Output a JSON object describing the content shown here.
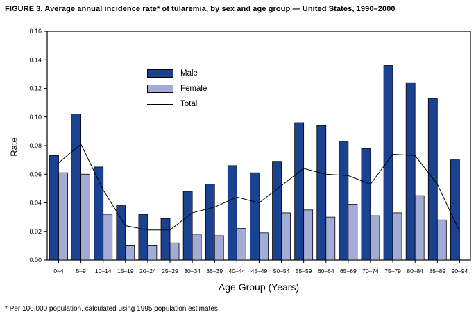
{
  "title": "FIGURE 3. Average annual incidence rate* of tularemia, by sex and age group — United States, 1990–2000",
  "footnote": "* Per 100,000 population, calculated using 1995 population estimates.",
  "chart_data": {
    "type": "bar",
    "title": "FIGURE 3. Average annual incidence rate* of tularemia, by sex and age group — United States, 1990–2000",
    "xlabel": "Age Group (Years)",
    "ylabel": "Rate",
    "ylim": [
      0,
      0.16
    ],
    "ytick_step": 0.02,
    "grid": false,
    "legend_position": "inside-upper-left",
    "categories": [
      "0–4",
      "5–9",
      "10–14",
      "15–19",
      "20–24",
      "25–29",
      "30–34",
      "35–39",
      "40–44",
      "45–49",
      "50–54",
      "55–59",
      "60–64",
      "65–69",
      "70–74",
      "75–79",
      "80–84",
      "85–89",
      "90–94"
    ],
    "series": [
      {
        "name": "Male",
        "style": "bar",
        "color": "#1a4291",
        "values": [
          0.073,
          0.102,
          0.065,
          0.038,
          0.032,
          0.029,
          0.048,
          0.053,
          0.066,
          0.061,
          0.069,
          0.096,
          0.094,
          0.083,
          0.078,
          0.136,
          0.124,
          0.113,
          0.07
        ]
      },
      {
        "name": "Female",
        "style": "bar",
        "color": "#a4abd4",
        "values": [
          0.061,
          0.06,
          0.032,
          0.01,
          0.01,
          0.012,
          0.018,
          0.017,
          0.022,
          0.019,
          0.033,
          0.035,
          0.03,
          0.039,
          0.031,
          0.033,
          0.045,
          0.028,
          0
        ]
      },
      {
        "name": "Total",
        "style": "line",
        "color": "#000000",
        "values": [
          0.068,
          0.081,
          0.049,
          0.024,
          0.021,
          0.021,
          0.033,
          0.037,
          0.044,
          0.04,
          0.052,
          0.064,
          0.06,
          0.059,
          0.053,
          0.074,
          0.073,
          0.053,
          0.02
        ]
      }
    ]
  }
}
